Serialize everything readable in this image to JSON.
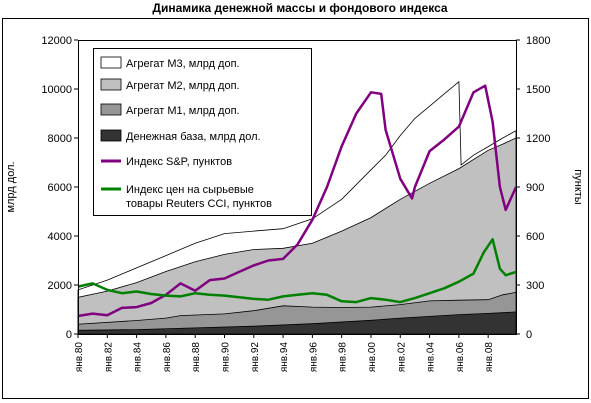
{
  "chart_data": {
    "type": "area",
    "title": "Динамика денежной массы и фондового индекса",
    "ylabel_left": "млрд дол.",
    "ylabel_right": "пункты",
    "ylim_left": [
      0,
      12000
    ],
    "ylim_right": [
      0,
      1800
    ],
    "yticks_left": [
      "0",
      "2000",
      "4000",
      "6000",
      "8000",
      "10000",
      "12000"
    ],
    "yticks_right": [
      "0",
      "300",
      "600",
      "900",
      "1200",
      "1500",
      "1800"
    ],
    "xlim": [
      1980,
      2009.9
    ],
    "xticks": [
      {
        "x": 1980,
        "label": "янв.80"
      },
      {
        "x": 1982,
        "label": "янв.82"
      },
      {
        "x": 1984,
        "label": "янв.84"
      },
      {
        "x": 1986,
        "label": "янв.86"
      },
      {
        "x": 1988,
        "label": "янв.88"
      },
      {
        "x": 1990,
        "label": "янв.90"
      },
      {
        "x": 1992,
        "label": "янв.92"
      },
      {
        "x": 1994,
        "label": "янв.94"
      },
      {
        "x": 1996,
        "label": "янв.96"
      },
      {
        "x": 1998,
        "label": "янв.98"
      },
      {
        "x": 2000,
        "label": "янв.00"
      },
      {
        "x": 2002,
        "label": "янв.02"
      },
      {
        "x": 2004,
        "label": "янв.04"
      },
      {
        "x": 2006,
        "label": "янв.06"
      },
      {
        "x": 2008,
        "label": "янв.08"
      }
    ],
    "grid": false,
    "legend_position": "top-left",
    "series": [
      {
        "name": "Агрегат М3, млрд доп.",
        "kind": "area",
        "axis": "left",
        "color": "#ffffff",
        "points": [
          [
            1980,
            1800
          ],
          [
            1982,
            2200
          ],
          [
            1984,
            2700
          ],
          [
            1986,
            3200
          ],
          [
            1988,
            3700
          ],
          [
            1990,
            4100
          ],
          [
            1992,
            4200
          ],
          [
            1994,
            4300
          ],
          [
            1996,
            4700
          ],
          [
            1998,
            5500
          ],
          [
            2000,
            6700
          ],
          [
            2001,
            7300
          ],
          [
            2002,
            8100
          ],
          [
            2003,
            8800
          ],
          [
            2004,
            9300
          ],
          [
            2005,
            9800
          ],
          [
            2006,
            10300
          ],
          [
            2006.15,
            6900
          ],
          [
            2007,
            7300
          ],
          [
            2008,
            7650
          ],
          [
            2009,
            8000
          ],
          [
            2009.9,
            8300
          ]
        ]
      },
      {
        "name": "Агрегат М2, млрд доп.",
        "kind": "area",
        "axis": "left",
        "color": "#c0c0c0",
        "points": [
          [
            1980,
            1500
          ],
          [
            1982,
            1750
          ],
          [
            1984,
            2100
          ],
          [
            1986,
            2550
          ],
          [
            1988,
            2950
          ],
          [
            1990,
            3250
          ],
          [
            1992,
            3450
          ],
          [
            1994,
            3500
          ],
          [
            1996,
            3700
          ],
          [
            1998,
            4200
          ],
          [
            2000,
            4750
          ],
          [
            2002,
            5500
          ],
          [
            2004,
            6150
          ],
          [
            2006,
            6750
          ],
          [
            2008,
            7500
          ],
          [
            2009,
            7750
          ],
          [
            2009.9,
            8000
          ]
        ]
      },
      {
        "name": "Агрегат М1, млрд доп.",
        "kind": "area",
        "axis": "left",
        "color": "#969696",
        "points": [
          [
            1980,
            400
          ],
          [
            1984,
            550
          ],
          [
            1986,
            650
          ],
          [
            1987,
            750
          ],
          [
            1990,
            820
          ],
          [
            1992,
            950
          ],
          [
            1994,
            1150
          ],
          [
            1996,
            1100
          ],
          [
            1998,
            1080
          ],
          [
            2000,
            1100
          ],
          [
            2002,
            1200
          ],
          [
            2004,
            1350
          ],
          [
            2006,
            1380
          ],
          [
            2008,
            1400
          ],
          [
            2009,
            1600
          ],
          [
            2009.9,
            1700
          ]
        ]
      },
      {
        "name": "Денежная база, млрд дол.",
        "kind": "area",
        "axis": "left",
        "color": "#333333",
        "points": [
          [
            1980,
            150
          ],
          [
            1984,
            180
          ],
          [
            1988,
            250
          ],
          [
            1992,
            320
          ],
          [
            1996,
            420
          ],
          [
            2000,
            560
          ],
          [
            2002,
            650
          ],
          [
            2004,
            720
          ],
          [
            2006,
            790
          ],
          [
            2008,
            840
          ],
          [
            2009,
            870
          ],
          [
            2009.9,
            900
          ]
        ]
      },
      {
        "name": "Индекс S&P, пунктов",
        "kind": "line",
        "axis": "right",
        "color": "#800080",
        "points": [
          [
            1980,
            110
          ],
          [
            1981,
            125
          ],
          [
            1982,
            115
          ],
          [
            1983,
            160
          ],
          [
            1984,
            165
          ],
          [
            1985,
            190
          ],
          [
            1986,
            240
          ],
          [
            1987,
            310
          ],
          [
            1988,
            265
          ],
          [
            1989,
            330
          ],
          [
            1990,
            340
          ],
          [
            1991,
            380
          ],
          [
            1992,
            420
          ],
          [
            1993,
            450
          ],
          [
            1994,
            460
          ],
          [
            1995,
            550
          ],
          [
            1996,
            700
          ],
          [
            1997,
            900
          ],
          [
            1998,
            1150
          ],
          [
            1999,
            1350
          ],
          [
            2000,
            1480
          ],
          [
            2000.7,
            1470
          ],
          [
            2001,
            1250
          ],
          [
            2002,
            950
          ],
          [
            2002.8,
            830
          ],
          [
            2003,
            900
          ],
          [
            2004,
            1120
          ],
          [
            2005,
            1190
          ],
          [
            2006,
            1270
          ],
          [
            2007,
            1480
          ],
          [
            2007.8,
            1520
          ],
          [
            2008.3,
            1300
          ],
          [
            2008.8,
            900
          ],
          [
            2009.2,
            760
          ],
          [
            2009.9,
            900
          ]
        ]
      },
      {
        "name": "Индекс цен на сырьевые товары Reuters CCI, пунктов",
        "kind": "line",
        "axis": "right",
        "color": "#008000",
        "points": [
          [
            1980,
            290
          ],
          [
            1981,
            310
          ],
          [
            1982,
            270
          ],
          [
            1983,
            250
          ],
          [
            1984,
            260
          ],
          [
            1985,
            245
          ],
          [
            1986,
            235
          ],
          [
            1987,
            230
          ],
          [
            1988,
            250
          ],
          [
            1989,
            240
          ],
          [
            1990,
            235
          ],
          [
            1991,
            225
          ],
          [
            1992,
            215
          ],
          [
            1993,
            210
          ],
          [
            1994,
            230
          ],
          [
            1995,
            240
          ],
          [
            1996,
            250
          ],
          [
            1997,
            240
          ],
          [
            1998,
            200
          ],
          [
            1999,
            195
          ],
          [
            2000,
            220
          ],
          [
            2001,
            210
          ],
          [
            2002,
            195
          ],
          [
            2003,
            220
          ],
          [
            2004,
            250
          ],
          [
            2005,
            280
          ],
          [
            2006,
            320
          ],
          [
            2007,
            370
          ],
          [
            2007.7,
            500
          ],
          [
            2008.3,
            580
          ],
          [
            2008.8,
            400
          ],
          [
            2009.2,
            360
          ],
          [
            2009.9,
            380
          ]
        ]
      }
    ]
  }
}
